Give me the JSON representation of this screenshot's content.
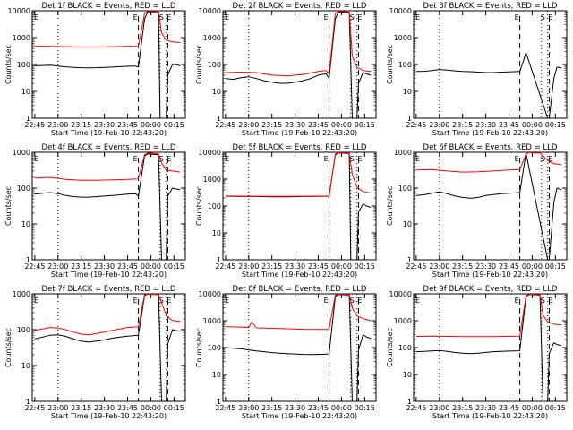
{
  "style": {
    "background": "#ffffff",
    "axes_color": "#000000",
    "events_color": "#000000",
    "lld_color": "#ff0000"
  },
  "chart_data": [
    {
      "type": "line",
      "scale_y": "log",
      "ylim": [
        1,
        10000
      ],
      "ylabel": "Counts/sec",
      "title": "Det 1f BLACK = Events, RED = LLD",
      "xlabel": "Start Time (19-Feb-10 22:43:20)",
      "x_ticks": [
        "22:45",
        "23:00",
        "23:15",
        "23:30",
        "23:45",
        "00:00",
        "00:15"
      ],
      "y_ticks": [
        "1",
        "10",
        "100",
        "1000",
        "10000"
      ],
      "markers": [
        "E",
        "S",
        "E"
      ],
      "series": [
        {
          "color": "black",
          "x": [
            "22:45",
            "22:50",
            "22:55",
            "23:00",
            "23:05",
            "23:10",
            "23:15",
            "23:20",
            "23:25",
            "23:30",
            "23:35",
            "23:40",
            "23:45",
            "23:50",
            "23:52",
            "23:56",
            "23:58",
            "00:05",
            "00:06",
            "00:10",
            "00:11",
            "00:14",
            "00:16",
            "00:19"
          ],
          "values": [
            90,
            92,
            95,
            88,
            82,
            78,
            76,
            75,
            76,
            78,
            80,
            83,
            86,
            88,
            80,
            5000,
            9000,
            9000,
            0,
            0,
            40,
            100,
            100,
            90
          ]
        },
        {
          "color": "red",
          "x": [
            "22:45",
            "22:55",
            "23:05",
            "23:15",
            "23:25",
            "23:35",
            "23:45",
            "23:52",
            "23:56",
            "23:58",
            "00:05",
            "00:07",
            "00:10",
            "00:14",
            "00:19"
          ],
          "values": [
            480,
            470,
            460,
            450,
            450,
            460,
            470,
            480,
            8000,
            9500,
            9000,
            1500,
            800,
            700,
            650
          ]
        }
      ]
    },
    {
      "type": "line",
      "scale_y": "log",
      "ylim": [
        1,
        10000
      ],
      "ylabel": "Counts/sec",
      "title": "Det 2f BLACK = Events, RED = LLD",
      "xlabel": "Start Time (19-Feb-10 22:43:20)",
      "x_ticks": [
        "22:45",
        "23:00",
        "23:15",
        "23:30",
        "23:45",
        "00:00",
        "00:15"
      ],
      "y_ticks": [
        "1",
        "10",
        "100",
        "1000",
        "10000"
      ],
      "markers": [
        "E",
        "S",
        "E"
      ],
      "series": [
        {
          "color": "black",
          "x": [
            "22:45",
            "22:50",
            "22:55",
            "23:00",
            "23:05",
            "23:10",
            "23:15",
            "23:20",
            "23:25",
            "23:30",
            "23:35",
            "23:40",
            "23:45",
            "23:50",
            "23:52",
            "23:56",
            "23:58",
            "00:05",
            "00:07",
            "00:10",
            "00:11",
            "00:14",
            "00:16",
            "00:19"
          ],
          "values": [
            30,
            28,
            32,
            35,
            30,
            25,
            22,
            20,
            20,
            22,
            25,
            30,
            40,
            45,
            30,
            5000,
            9000,
            8500,
            0,
            0,
            20,
            50,
            45,
            40
          ]
        },
        {
          "color": "red",
          "x": [
            "22:45",
            "22:55",
            "23:05",
            "23:15",
            "23:25",
            "23:35",
            "23:45",
            "23:50",
            "23:52",
            "23:56",
            "23:58",
            "00:05",
            "00:07",
            "00:10",
            "00:14",
            "00:19"
          ],
          "values": [
            50,
            52,
            50,
            40,
            38,
            42,
            55,
            60,
            45,
            8000,
            9500,
            9000,
            200,
            80,
            60,
            55
          ]
        }
      ]
    },
    {
      "type": "line",
      "scale_y": "log",
      "ylim": [
        1,
        10000
      ],
      "ylabel": "Counts/sec",
      "title": "Det 3f BLACK = Events, RED = LLD",
      "xlabel": "Start Time (19-Feb-10 22:43:20)",
      "x_ticks": [
        "22:45",
        "23:00",
        "23:15",
        "23:30",
        "23:45",
        "00:00",
        "00:15"
      ],
      "y_ticks": [
        "1",
        "10",
        "100",
        "1000",
        "10000"
      ],
      "markers": [
        "E",
        "S",
        "E"
      ],
      "series": [
        {
          "color": "black",
          "x": [
            "22:45",
            "22:50",
            "22:55",
            "23:00",
            "23:05",
            "23:10",
            "23:15",
            "23:20",
            "23:25",
            "23:30",
            "23:35",
            "23:40",
            "23:45",
            "23:52",
            "23:54",
            "23:56",
            "00:10",
            "00:11",
            "00:14",
            "00:16",
            "00:19"
          ],
          "values": [
            55,
            56,
            60,
            65,
            62,
            58,
            55,
            54,
            52,
            50,
            50,
            52,
            53,
            55,
            120,
            280,
            0,
            0,
            30,
            80,
            75
          ]
        }
      ]
    },
    {
      "type": "line",
      "scale_y": "log",
      "ylim": [
        1,
        1000
      ],
      "ylabel": "Counts/sec",
      "title": "Det 4f BLACK = Events, RED = LLD",
      "xlabel": "Start Time (19-Feb-10 22:43:20)",
      "x_ticks": [
        "22:45",
        "23:00",
        "23:15",
        "23:30",
        "23:45",
        "00:00",
        "00:15"
      ],
      "y_ticks": [
        "1",
        "10",
        "100",
        "1000"
      ],
      "markers": [
        "E",
        "S",
        "E"
      ],
      "series": [
        {
          "color": "black",
          "x": [
            "22:45",
            "22:50",
            "22:55",
            "23:00",
            "23:05",
            "23:10",
            "23:15",
            "23:20",
            "23:25",
            "23:30",
            "23:35",
            "23:40",
            "23:45",
            "23:50",
            "23:52",
            "23:56",
            "23:58",
            "00:05",
            "00:07",
            "00:10",
            "00:11",
            "00:14",
            "00:16",
            "00:19"
          ],
          "values": [
            68,
            72,
            75,
            70,
            62,
            58,
            56,
            56,
            58,
            60,
            62,
            65,
            68,
            70,
            60,
            800,
            900,
            850,
            0,
            0,
            60,
            100,
            95,
            90
          ]
        },
        {
          "color": "red",
          "x": [
            "22:45",
            "22:55",
            "23:05",
            "23:15",
            "23:25",
            "23:35",
            "23:45",
            "23:52",
            "23:56",
            "23:58",
            "00:05",
            "00:07",
            "00:10",
            "00:14",
            "00:19"
          ],
          "values": [
            190,
            200,
            175,
            165,
            165,
            170,
            175,
            180,
            850,
            950,
            900,
            500,
            320,
            300,
            280
          ]
        }
      ]
    },
    {
      "type": "line",
      "scale_y": "log",
      "ylim": [
        1,
        10000
      ],
      "ylabel": "Counts/sec",
      "title": "Det 5f BLACK = Events, RED = LLD",
      "xlabel": "Start Time (19-Feb-10 22:43:20)",
      "x_ticks": [
        "22:45",
        "23:00",
        "23:15",
        "23:30",
        "23:45",
        "00:00",
        "00:15"
      ],
      "y_ticks": [
        "1",
        "10",
        "100",
        "1000",
        "10000"
      ],
      "markers": [
        "E",
        "S",
        "E"
      ],
      "series": [
        {
          "color": "black",
          "x": [
            "22:45",
            "22:55",
            "23:05",
            "23:15",
            "23:25",
            "23:35",
            "23:45",
            "23:52",
            "23:56",
            "23:58",
            "00:05",
            "00:06",
            "00:10",
            "00:11",
            "00:14",
            "00:16",
            "00:19"
          ],
          "values": [
            230,
            225,
            225,
            220,
            220,
            225,
            228,
            230,
            8000,
            9500,
            9000,
            0,
            0,
            60,
            120,
            100,
            90
          ]
        },
        {
          "color": "red",
          "x": [
            "22:45",
            "22:55",
            "23:05",
            "23:15",
            "23:25",
            "23:35",
            "23:45",
            "23:52",
            "23:56",
            "23:58",
            "00:05",
            "00:07",
            "00:10",
            "00:14",
            "00:19"
          ],
          "values": [
            235,
            232,
            230,
            228,
            228,
            230,
            232,
            235,
            8500,
            9800,
            9200,
            1500,
            500,
            350,
            300
          ]
        }
      ]
    },
    {
      "type": "line",
      "scale_y": "log",
      "ylim": [
        1,
        1000
      ],
      "ylabel": "Counts/sec",
      "title": "Det 6f BLACK = Events, RED = LLD",
      "xlabel": "Start Time (19-Feb-10 22:43:20)",
      "x_ticks": [
        "22:45",
        "23:00",
        "23:15",
        "23:30",
        "23:45",
        "00:00",
        "00:15"
      ],
      "y_ticks": [
        "1",
        "10",
        "100",
        "1000"
      ],
      "markers": [
        "E",
        "S",
        "E"
      ],
      "series": [
        {
          "color": "black",
          "x": [
            "22:45",
            "22:50",
            "22:55",
            "23:00",
            "23:05",
            "23:10",
            "23:15",
            "23:20",
            "23:25",
            "23:30",
            "23:35",
            "23:40",
            "23:45",
            "23:52",
            "23:56",
            "00:10",
            "00:11",
            "00:14",
            "00:16",
            "00:19"
          ],
          "values": [
            62,
            65,
            72,
            78,
            70,
            60,
            55,
            52,
            55,
            62,
            66,
            70,
            72,
            75,
            950,
            0,
            0,
            40,
            100,
            90
          ]
        },
        {
          "color": "red",
          "x": [
            "22:45",
            "22:55",
            "23:05",
            "23:15",
            "23:25",
            "23:35",
            "23:45",
            "23:52",
            "23:56",
            "23:58",
            "00:05",
            "00:10",
            "00:14",
            "00:19"
          ],
          "values": [
            320,
            330,
            300,
            280,
            285,
            300,
            320,
            330,
            900,
            980,
            950,
            600,
            480,
            450
          ]
        }
      ]
    },
    {
      "type": "line",
      "scale_y": "log",
      "ylim": [
        1,
        1000
      ],
      "ylabel": "Counts/sec",
      "title": "Det 7f BLACK = Events, RED = LLD",
      "xlabel": "Start Time (19-Feb-10 22:43:20)",
      "x_ticks": [
        "22:45",
        "23:00",
        "23:15",
        "23:30",
        "23:45",
        "00:00",
        "00:15"
      ],
      "y_ticks": [
        "1",
        "10",
        "100",
        "1000"
      ],
      "markers": [
        "E",
        "S",
        "E"
      ],
      "series": [
        {
          "color": "black",
          "x": [
            "22:45",
            "22:50",
            "22:55",
            "23:00",
            "23:05",
            "23:10",
            "23:15",
            "23:20",
            "23:25",
            "23:30",
            "23:35",
            "23:40",
            "23:45",
            "23:52",
            "23:56",
            "23:58",
            "00:05",
            "00:07",
            "00:10",
            "00:11",
            "00:14",
            "00:16",
            "00:19"
          ],
          "values": [
            55,
            62,
            70,
            72,
            65,
            55,
            48,
            45,
            48,
            52,
            58,
            62,
            66,
            70,
            900,
            980,
            950,
            0,
            0,
            40,
            100,
            95,
            90
          ]
        },
        {
          "color": "red",
          "x": [
            "22:45",
            "22:50",
            "22:55",
            "23:00",
            "23:05",
            "23:10",
            "23:15",
            "23:20",
            "23:25",
            "23:30",
            "23:35",
            "23:40",
            "23:45",
            "23:52",
            "23:56",
            "23:58",
            "00:05",
            "00:10",
            "00:14",
            "00:19"
          ],
          "values": [
            95,
            105,
            115,
            110,
            100,
            85,
            75,
            72,
            78,
            85,
            95,
            105,
            115,
            120,
            950,
            990,
            960,
            250,
            180,
            170
          ]
        }
      ]
    },
    {
      "type": "line",
      "scale_y": "log",
      "ylim": [
        1,
        10000
      ],
      "ylabel": "Counts/sec",
      "title": "Det 8f BLACK = Events, RED = LLD",
      "xlabel": "Start Time (19-Feb-10 22:43:20)",
      "x_ticks": [
        "22:45",
        "23:00",
        "23:15",
        "23:30",
        "23:45",
        "00:00",
        "00:15"
      ],
      "y_ticks": [
        "1",
        "10",
        "100",
        "1000",
        "10000"
      ],
      "markers": [
        "E",
        "S",
        "E"
      ],
      "series": [
        {
          "color": "black",
          "x": [
            "22:45",
            "22:50",
            "22:55",
            "23:00",
            "23:05",
            "23:10",
            "23:15",
            "23:20",
            "23:25",
            "23:30",
            "23:35",
            "23:40",
            "23:45",
            "23:52",
            "23:56",
            "23:58",
            "00:05",
            "00:07",
            "00:10",
            "00:11",
            "00:14",
            "00:16",
            "00:19"
          ],
          "values": [
            100,
            95,
            90,
            82,
            75,
            70,
            65,
            62,
            60,
            58,
            56,
            55,
            56,
            58,
            8000,
            9500,
            9000,
            0,
            0,
            80,
            300,
            250,
            220
          ]
        },
        {
          "color": "red",
          "x": [
            "22:45",
            "22:55",
            "23:00",
            "23:02",
            "23:05",
            "23:15",
            "23:25",
            "23:35",
            "23:45",
            "23:52",
            "23:56",
            "23:58",
            "00:05",
            "00:07",
            "00:10",
            "00:14",
            "00:19"
          ],
          "values": [
            600,
            580,
            560,
            900,
            540,
            520,
            500,
            480,
            470,
            480,
            9000,
            9800,
            9500,
            3000,
            1500,
            1200,
            1000
          ]
        }
      ]
    },
    {
      "type": "line",
      "scale_y": "log",
      "ylim": [
        1,
        10000
      ],
      "ylabel": "Counts/sec",
      "title": "Det 9f BLACK = Events, RED = LLD",
      "xlabel": "Start Time (19-Feb-10 22:43:20)",
      "x_ticks": [
        "22:45",
        "23:00",
        "23:15",
        "23:30",
        "23:45",
        "00:00",
        "00:15"
      ],
      "y_ticks": [
        "1",
        "10",
        "100",
        "1000",
        "10000"
      ],
      "markers": [
        "E",
        "S",
        "E"
      ],
      "series": [
        {
          "color": "black",
          "x": [
            "22:45",
            "22:50",
            "22:55",
            "23:00",
            "23:05",
            "23:10",
            "23:15",
            "23:20",
            "23:25",
            "23:30",
            "23:35",
            "23:40",
            "23:45",
            "23:52",
            "23:56",
            "23:58",
            "00:05",
            "00:07",
            "00:10",
            "00:11",
            "00:14",
            "00:16",
            "00:19"
          ],
          "values": [
            70,
            72,
            75,
            78,
            72,
            66,
            62,
            60,
            62,
            66,
            70,
            72,
            74,
            76,
            8000,
            9500,
            9000,
            0,
            0,
            60,
            150,
            130,
            120
          ]
        },
        {
          "color": "red",
          "x": [
            "22:45",
            "22:55",
            "23:05",
            "23:15",
            "23:25",
            "23:35",
            "23:45",
            "23:52",
            "23:56",
            "23:58",
            "00:05",
            "00:07",
            "00:10",
            "00:14",
            "00:19"
          ],
          "values": [
            260,
            265,
            262,
            258,
            255,
            258,
            262,
            265,
            8500,
            9800,
            9200,
            1600,
            900,
            750,
            700
          ]
        }
      ]
    }
  ]
}
